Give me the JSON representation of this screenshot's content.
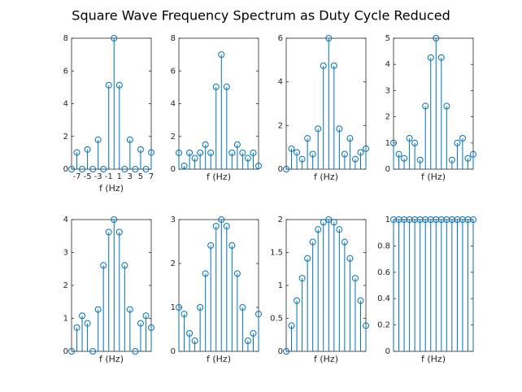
{
  "title": "Square Wave Frequency Spectrum as Duty Cycle Reduced",
  "chart_data": [
    {
      "type": "stem",
      "xlabel": "f (Hz)",
      "color": "#0072bd",
      "x": [
        -8,
        -7,
        -6,
        -5,
        -4,
        -3,
        -2,
        -1,
        0,
        1,
        2,
        3,
        4,
        5,
        6,
        7
      ],
      "xlim": [
        -8,
        7
      ],
      "xticks": [
        -7,
        -5,
        -3,
        -1,
        1,
        3,
        5,
        7
      ],
      "values": [
        0,
        1.02,
        0,
        1.2,
        0,
        1.8,
        0,
        5.13,
        8,
        5.13,
        0,
        1.8,
        0,
        1.2,
        0,
        1.02
      ],
      "ylim": [
        0,
        8
      ],
      "yticks": [
        0,
        2,
        4,
        6,
        8
      ]
    },
    {
      "type": "stem",
      "xlabel": "f (Hz)",
      "color": "#0072bd",
      "x": [
        -8,
        -7,
        -6,
        -5,
        -4,
        -3,
        -2,
        -1,
        0,
        1,
        2,
        3,
        4,
        5,
        6,
        7
      ],
      "xlim": [
        -8,
        7
      ],
      "values": [
        1,
        0.2,
        1,
        0.67,
        1,
        1.5,
        1,
        5.03,
        7,
        5.03,
        1,
        1.5,
        1,
        0.67,
        1,
        0.2
      ],
      "ylim": [
        0,
        8
      ],
      "yticks": [
        0,
        2,
        4,
        6,
        8
      ]
    },
    {
      "type": "stem",
      "xlabel": "f (Hz)",
      "color": "#0072bd",
      "x": [
        -8,
        -7,
        -6,
        -5,
        -4,
        -3,
        -2,
        -1,
        0,
        1,
        2,
        3,
        4,
        5,
        6,
        7
      ],
      "xlim": [
        -8,
        7
      ],
      "values": [
        0,
        0.94,
        0.77,
        0.46,
        1.41,
        0.69,
        1.85,
        4.74,
        6,
        4.74,
        1.85,
        0.69,
        1.41,
        0.46,
        0.77,
        0.94
      ],
      "ylim": [
        0,
        6
      ],
      "yticks": [
        0,
        2,
        4,
        6
      ]
    },
    {
      "type": "stem",
      "xlabel": "f (Hz)",
      "color": "#0072bd",
      "x": [
        -8,
        -7,
        -6,
        -5,
        -4,
        -3,
        -2,
        -1,
        0,
        1,
        2,
        3,
        4,
        5,
        6,
        7
      ],
      "xlim": [
        -8,
        7
      ],
      "values": [
        1,
        0.57,
        0.41,
        1.18,
        1,
        0.35,
        2.41,
        4.26,
        5,
        4.26,
        2.41,
        0.35,
        1,
        1.18,
        0.41,
        0.57
      ],
      "ylim": [
        0,
        5
      ],
      "yticks": [
        0,
        1,
        2,
        3,
        4,
        5
      ]
    },
    {
      "type": "stem",
      "xlabel": "f (Hz)",
      "color": "#0072bd",
      "x": [
        -8,
        -7,
        -6,
        -5,
        -4,
        -3,
        -2,
        -1,
        0,
        1,
        2,
        3,
        4,
        5,
        6,
        7
      ],
      "xlim": [
        -8,
        7
      ],
      "values": [
        0,
        0.72,
        1.08,
        0.85,
        0,
        1.27,
        2.61,
        3.62,
        4,
        3.62,
        2.61,
        1.27,
        0,
        0.85,
        1.08,
        0.72
      ],
      "ylim": [
        0,
        4
      ],
      "yticks": [
        0,
        1,
        2,
        3,
        4
      ]
    },
    {
      "type": "stem",
      "xlabel": "f (Hz)",
      "color": "#0072bd",
      "x": [
        -8,
        -7,
        -6,
        -5,
        -4,
        -3,
        -2,
        -1,
        0,
        1,
        2,
        3,
        4,
        5,
        6,
        7
      ],
      "xlim": [
        -8,
        7
      ],
      "values": [
        1,
        0.85,
        0.41,
        0.24,
        1,
        1.77,
        2.41,
        2.85,
        3,
        2.85,
        2.41,
        1.77,
        1,
        0.24,
        0.41,
        0.85
      ],
      "ylim": [
        0,
        3
      ],
      "yticks": [
        0,
        1,
        2,
        3
      ]
    },
    {
      "type": "stem",
      "xlabel": "f (Hz)",
      "color": "#0072bd",
      "x": [
        -8,
        -7,
        -6,
        -5,
        -4,
        -3,
        -2,
        -1,
        0,
        1,
        2,
        3,
        4,
        5,
        6,
        7
      ],
      "xlim": [
        -8,
        7
      ],
      "values": [
        0,
        0.39,
        0.77,
        1.11,
        1.41,
        1.66,
        1.85,
        1.96,
        2,
        1.96,
        1.85,
        1.66,
        1.41,
        1.11,
        0.77,
        0.39
      ],
      "ylim": [
        0,
        2
      ],
      "yticks": [
        0,
        0.5,
        1,
        1.5,
        2
      ]
    },
    {
      "type": "stem",
      "xlabel": "f (Hz)",
      "color": "#0072bd",
      "x": [
        -8,
        -7,
        -6,
        -5,
        -4,
        -3,
        -2,
        -1,
        0,
        1,
        2,
        3,
        4,
        5,
        6,
        7
      ],
      "xlim": [
        -8,
        7
      ],
      "values": [
        1,
        1,
        1,
        1,
        1,
        1,
        1,
        1,
        1,
        1,
        1,
        1,
        1,
        1,
        1,
        1
      ],
      "ylim": [
        0,
        1
      ],
      "yticks": [
        0,
        0.2,
        0.4,
        0.6,
        0.8,
        1
      ]
    }
  ]
}
